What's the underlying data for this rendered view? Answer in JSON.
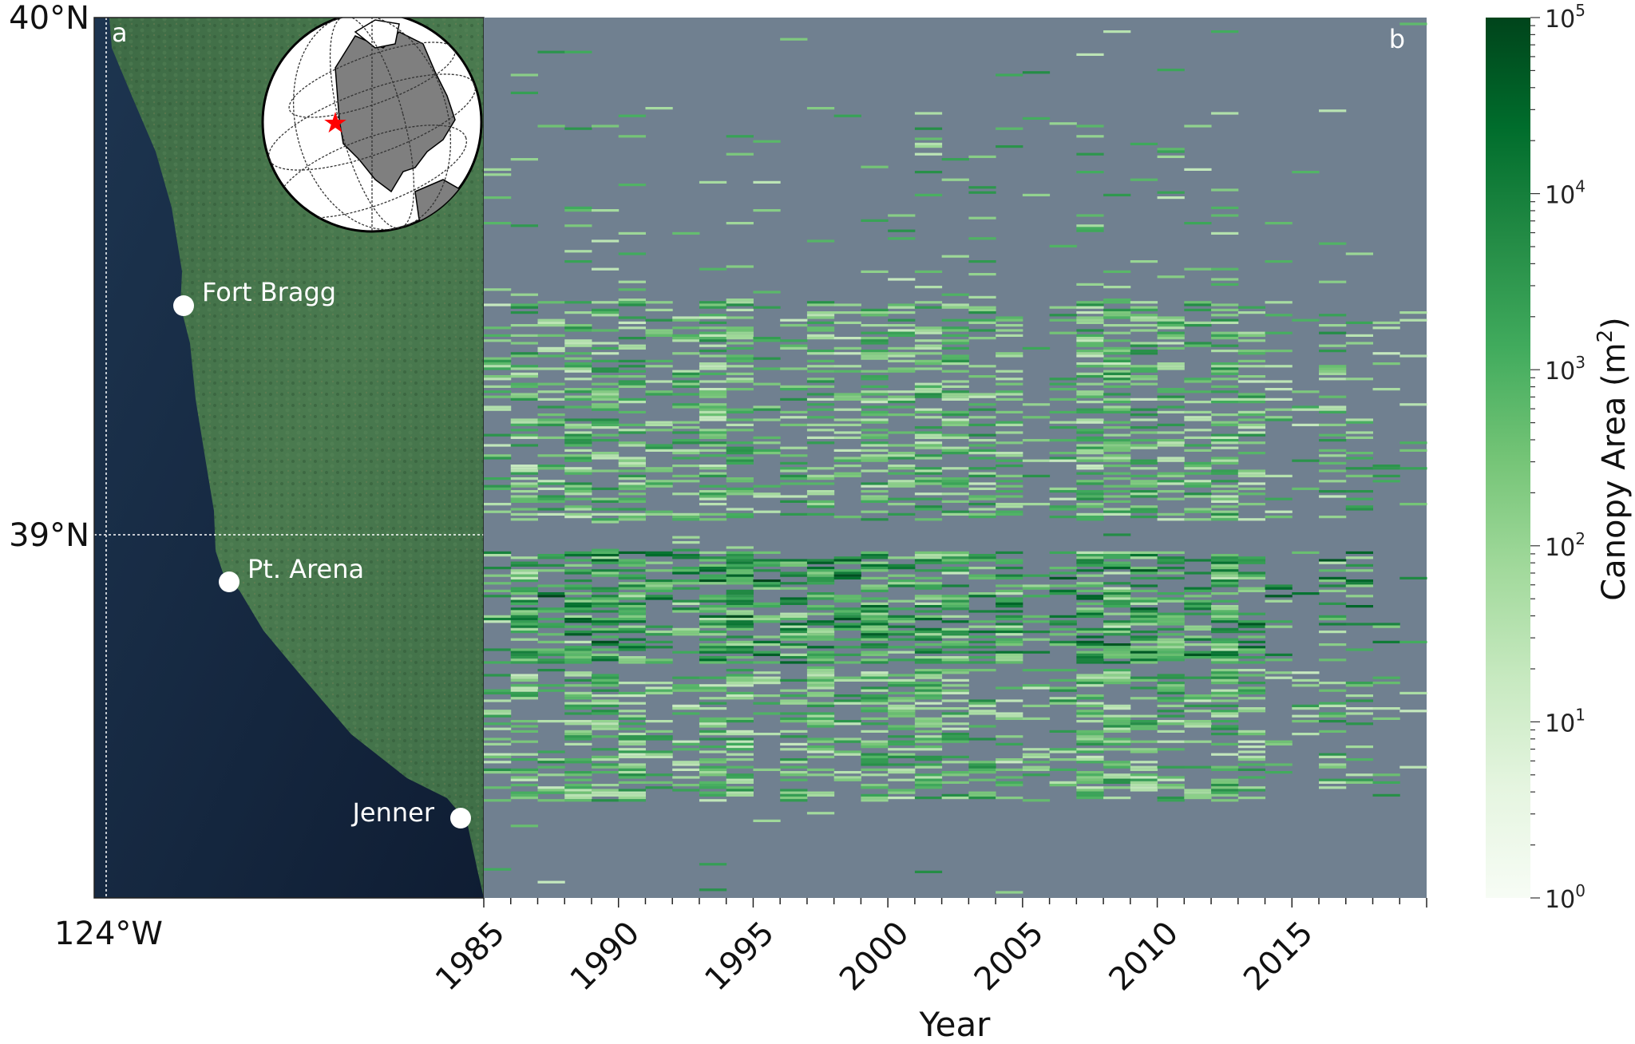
{
  "panel_a": {
    "label": "a",
    "lat_labels": [
      "40°N",
      "39°N"
    ],
    "lon_label": "124°W",
    "cities": [
      {
        "name": "Fort Bragg"
      },
      {
        "name": "Pt. Arena"
      },
      {
        "name": "Jenner"
      }
    ],
    "inset": {
      "marker": "red-star",
      "marker_color": "#ff0000",
      "land_color": "#7f7f7f"
    }
  },
  "chart_data": {
    "type": "heatmap",
    "panel_label": "b",
    "xlabel": "Year",
    "x_tick_labels": [
      "1985",
      "1990",
      "1995",
      "2000",
      "2005",
      "2010",
      "2015"
    ],
    "x_range": [
      1985,
      2020
    ],
    "background_color": "#708090",
    "colormap": "Greens",
    "colorbar": {
      "label": "Canopy Area (m",
      "label_exponent": "2",
      "label_close": ")",
      "scale": "log",
      "range": [
        1,
        100000
      ],
      "ticks": [
        {
          "base": "10",
          "exp": "5"
        },
        {
          "base": "10",
          "exp": "4"
        },
        {
          "base": "10",
          "exp": "3"
        },
        {
          "base": "10",
          "exp": "2"
        },
        {
          "base": "10",
          "exp": "1"
        },
        {
          "base": "10",
          "exp": "0"
        }
      ]
    }
  }
}
